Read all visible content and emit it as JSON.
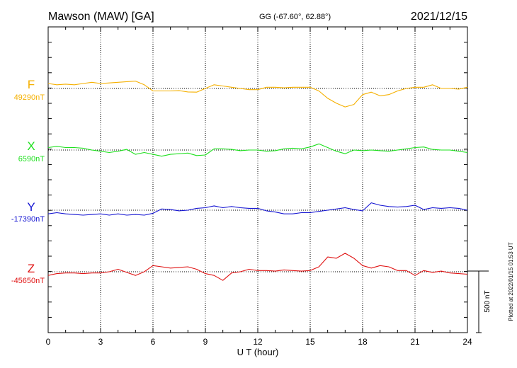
{
  "header": {
    "station": "Mawson (MAW)  [GA]",
    "coords": "GG (-67.60°,  62.88°)",
    "date": "2021/12/15"
  },
  "footer": {
    "plotted": "Plotted at 2022/01/15 01:53 UT"
  },
  "scale_label": "500 nT",
  "colors": {
    "F": "#f5b000",
    "X": "#1ee01e",
    "Y": "#1414d2",
    "Z": "#e01414"
  },
  "chart_data": {
    "type": "line",
    "xlabel": "U T (hour)",
    "xlim": [
      0,
      24
    ],
    "x_ticks": [
      "0",
      "3",
      "6",
      "9",
      "12",
      "15",
      "18",
      "21",
      "24"
    ],
    "scale_nT": 500,
    "series": [
      {
        "name": "F",
        "baseline_label": "49290nT",
        "baseline": 49290,
        "x": [
          0,
          0.5,
          1,
          1.5,
          2,
          2.5,
          3,
          3.5,
          4,
          4.5,
          5,
          5.5,
          6,
          6.5,
          7,
          7.5,
          8,
          8.5,
          9,
          9.5,
          10,
          10.5,
          11,
          11.5,
          12,
          12.5,
          13,
          13.5,
          14,
          14.5,
          15,
          15.5,
          16,
          16.5,
          17,
          17.5,
          18,
          18.5,
          19,
          19.5,
          20,
          20.5,
          21,
          21.5,
          22,
          22.5,
          23,
          23.5,
          24
        ],
        "values": [
          49330,
          49320,
          49325,
          49320,
          49330,
          49340,
          49330,
          49335,
          49340,
          49345,
          49350,
          49320,
          49270,
          49270,
          49270,
          49272,
          49262,
          49260,
          49290,
          49320,
          49310,
          49300,
          49290,
          49280,
          49280,
          49300,
          49300,
          49295,
          49300,
          49300,
          49300,
          49270,
          49210,
          49170,
          49140,
          49160,
          49240,
          49260,
          49230,
          49240,
          49270,
          49290,
          49300,
          49300,
          49320,
          49290,
          49290,
          49285,
          49300
        ]
      },
      {
        "name": "X",
        "baseline_label": "6590nT",
        "baseline": 6590,
        "x": [
          0,
          0.5,
          1,
          1.5,
          2,
          2.5,
          3,
          3.5,
          4,
          4.5,
          5,
          5.5,
          6,
          6.5,
          7,
          7.5,
          8,
          8.5,
          9,
          9.5,
          10,
          10.5,
          11,
          11.5,
          12,
          12.5,
          13,
          13.5,
          14,
          14.5,
          15,
          15.5,
          16,
          16.5,
          17,
          17.5,
          18,
          18.5,
          19,
          19.5,
          20,
          20.5,
          21,
          21.5,
          22,
          22.5,
          23,
          23.5,
          24
        ],
        "values": [
          6610,
          6620,
          6610,
          6610,
          6605,
          6590,
          6580,
          6570,
          6580,
          6595,
          6555,
          6570,
          6555,
          6540,
          6555,
          6560,
          6565,
          6545,
          6550,
          6600,
          6600,
          6595,
          6585,
          6590,
          6590,
          6580,
          6585,
          6600,
          6605,
          6600,
          6615,
          6640,
          6610,
          6580,
          6560,
          6590,
          6585,
          6590,
          6585,
          6580,
          6590,
          6600,
          6610,
          6615,
          6595,
          6590,
          6590,
          6580,
          6570
        ]
      },
      {
        "name": "Y",
        "baseline_label": "-17390nT",
        "baseline": -17390,
        "x": [
          0,
          0.5,
          1,
          1.5,
          2,
          2.5,
          3,
          3.5,
          4,
          4.5,
          5,
          5.5,
          6,
          6.5,
          7,
          7.5,
          8,
          8.5,
          9,
          9.5,
          10,
          10.5,
          11,
          11.5,
          12,
          12.5,
          13,
          13.5,
          14,
          14.5,
          15,
          15.5,
          16,
          16.5,
          17,
          17.5,
          18,
          18.5,
          19,
          19.5,
          20,
          20.5,
          21,
          21.5,
          22,
          22.5,
          23,
          23.5,
          24
        ],
        "values": [
          -17420,
          -17410,
          -17420,
          -17425,
          -17430,
          -17425,
          -17420,
          -17430,
          -17420,
          -17430,
          -17425,
          -17430,
          -17415,
          -17380,
          -17385,
          -17395,
          -17390,
          -17375,
          -17370,
          -17355,
          -17370,
          -17360,
          -17370,
          -17375,
          -17375,
          -17395,
          -17405,
          -17420,
          -17420,
          -17410,
          -17410,
          -17400,
          -17390,
          -17380,
          -17370,
          -17385,
          -17395,
          -17330,
          -17350,
          -17360,
          -17365,
          -17360,
          -17350,
          -17385,
          -17370,
          -17375,
          -17370,
          -17375,
          -17390
        ]
      },
      {
        "name": "Z",
        "baseline_label": "-45650nT",
        "baseline": -45650,
        "x": [
          0,
          0.5,
          1,
          1.5,
          2,
          2.5,
          3,
          3.5,
          4,
          4.5,
          5,
          5.5,
          6,
          6.5,
          7,
          7.5,
          8,
          8.5,
          9,
          9.5,
          10,
          10.5,
          11,
          11.5,
          12,
          12.5,
          13,
          13.5,
          14,
          14.5,
          15,
          15.5,
          16,
          16.5,
          17,
          17.5,
          18,
          18.5,
          19,
          19.5,
          20,
          20.5,
          21,
          21.5,
          22,
          22.5,
          23,
          23.5,
          24
        ],
        "values": [
          -45680,
          -45665,
          -45660,
          -45660,
          -45665,
          -45660,
          -45660,
          -45650,
          -45630,
          -45655,
          -45680,
          -45650,
          -45600,
          -45610,
          -45620,
          -45615,
          -45610,
          -45630,
          -45665,
          -45680,
          -45720,
          -45660,
          -45650,
          -45630,
          -45640,
          -45640,
          -45645,
          -45635,
          -45640,
          -45645,
          -45640,
          -45610,
          -45530,
          -45540,
          -45500,
          -45540,
          -45600,
          -45620,
          -45600,
          -45610,
          -45640,
          -45640,
          -45680,
          -45640,
          -45655,
          -45645,
          -45660,
          -45665,
          -45670
        ]
      }
    ]
  }
}
